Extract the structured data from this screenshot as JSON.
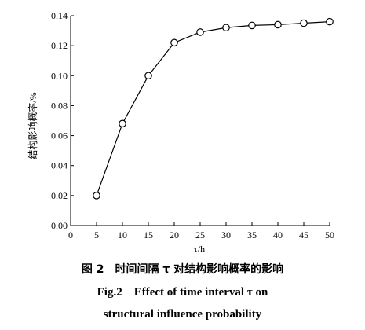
{
  "chart_data": {
    "type": "line",
    "x": [
      5,
      10,
      15,
      20,
      25,
      30,
      35,
      40,
      45,
      50
    ],
    "series": [
      {
        "values": [
          0.02,
          0.068,
          0.1,
          0.122,
          0.129,
          0.132,
          0.1335,
          0.134,
          0.135,
          0.136
        ]
      }
    ],
    "xlabel": "τ/h",
    "ylabel": "结构影响概率/%",
    "xlim": [
      0,
      50
    ],
    "ylim": [
      0,
      0.14
    ],
    "xticks": [
      "0",
      "5",
      "10",
      "15",
      "20",
      "25",
      "30",
      "35",
      "40",
      "45",
      "50"
    ],
    "yticks": [
      "0.00",
      "0.02",
      "0.04",
      "0.06",
      "0.08",
      "0.10",
      "0.12",
      "0.14"
    ],
    "marker": "open-circle",
    "grid": false,
    "line_color": "#000000"
  },
  "caption": {
    "cn_label": "图 2",
    "cn_text": "时间间隔 τ 对结构影响概率的影响",
    "en_label": "Fig.2",
    "en_text_1": "Effect of time interval τ on",
    "en_text_2": "structural influence probability"
  }
}
